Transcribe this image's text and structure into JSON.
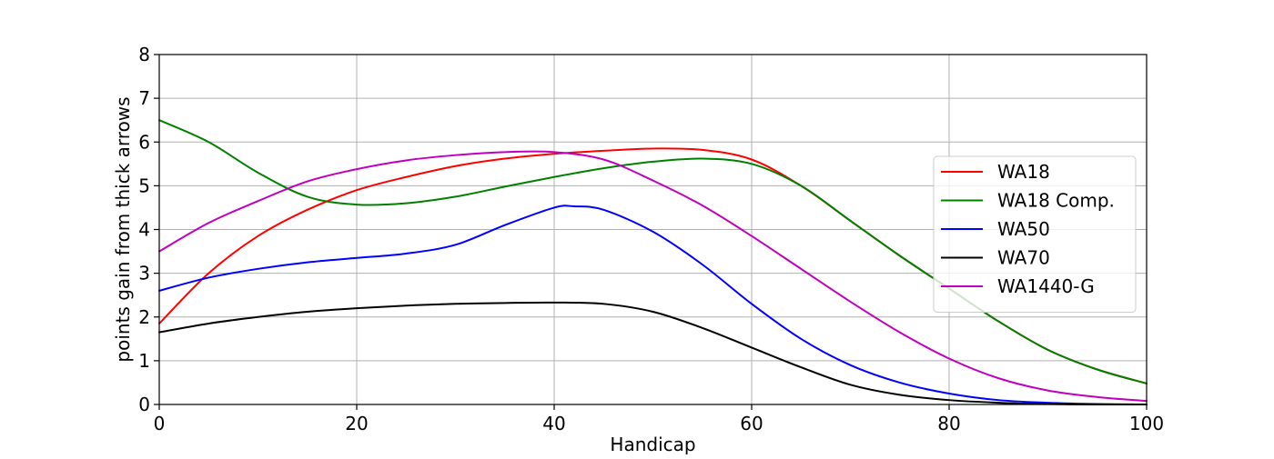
{
  "chart_data": {
    "type": "line",
    "xlabel": "Handicap",
    "ylabel": "points gain from thick arrows",
    "xlim": [
      0,
      100
    ],
    "ylim": [
      0,
      8
    ],
    "xticks": [
      0,
      20,
      40,
      60,
      80,
      100
    ],
    "yticks": [
      0,
      1,
      2,
      3,
      4,
      5,
      6,
      7,
      8
    ],
    "grid": true,
    "legend_position": "center-right",
    "series": [
      {
        "name": "WA18",
        "color": "#ff0000",
        "x": [
          0,
          5,
          10,
          15,
          20,
          25,
          30,
          35,
          40,
          45,
          50,
          55,
          60,
          65,
          70,
          75,
          80,
          85,
          90,
          95,
          100
        ],
        "y": [
          1.85,
          3.0,
          3.85,
          4.45,
          4.9,
          5.2,
          5.45,
          5.62,
          5.73,
          5.8,
          5.85,
          5.82,
          5.6,
          5.0,
          4.2,
          3.4,
          2.65,
          1.9,
          1.25,
          0.8,
          0.48
        ]
      },
      {
        "name": "WA18 Comp.",
        "color": "#008000",
        "x": [
          0,
          5,
          10,
          15,
          20,
          25,
          30,
          35,
          40,
          45,
          50,
          55,
          60,
          65,
          70,
          75,
          80,
          85,
          90,
          95,
          100
        ],
        "y": [
          6.5,
          6.0,
          5.3,
          4.75,
          4.57,
          4.6,
          4.75,
          4.98,
          5.2,
          5.4,
          5.55,
          5.62,
          5.5,
          5.0,
          4.2,
          3.4,
          2.65,
          1.9,
          1.25,
          0.8,
          0.48
        ]
      },
      {
        "name": "WA50",
        "color": "#0000ff",
        "x": [
          0,
          5,
          10,
          15,
          20,
          25,
          30,
          35,
          40,
          42,
          45,
          50,
          55,
          60,
          65,
          70,
          75,
          80,
          85,
          90,
          95,
          100
        ],
        "y": [
          2.6,
          2.9,
          3.1,
          3.25,
          3.35,
          3.45,
          3.65,
          4.1,
          4.5,
          4.53,
          4.45,
          3.95,
          3.2,
          2.3,
          1.5,
          0.9,
          0.5,
          0.25,
          0.1,
          0.04,
          0.01,
          0.0
        ]
      },
      {
        "name": "WA70",
        "color": "#000000",
        "x": [
          0,
          5,
          10,
          15,
          20,
          25,
          30,
          35,
          40,
          45,
          50,
          55,
          60,
          65,
          70,
          75,
          80,
          85,
          90,
          95,
          100
        ],
        "y": [
          1.65,
          1.85,
          2.0,
          2.12,
          2.2,
          2.26,
          2.3,
          2.32,
          2.33,
          2.3,
          2.12,
          1.75,
          1.3,
          0.85,
          0.45,
          0.22,
          0.1,
          0.04,
          0.01,
          0.0,
          0.0
        ]
      },
      {
        "name": "WA1440-G",
        "color": "#bf00bf",
        "x": [
          0,
          5,
          10,
          15,
          20,
          25,
          30,
          35,
          40,
          45,
          50,
          55,
          60,
          65,
          70,
          75,
          80,
          85,
          90,
          95,
          100
        ],
        "y": [
          3.5,
          4.15,
          4.65,
          5.1,
          5.38,
          5.58,
          5.7,
          5.77,
          5.77,
          5.6,
          5.12,
          4.55,
          3.85,
          3.1,
          2.35,
          1.65,
          1.05,
          0.6,
          0.32,
          0.17,
          0.08
        ]
      }
    ]
  }
}
